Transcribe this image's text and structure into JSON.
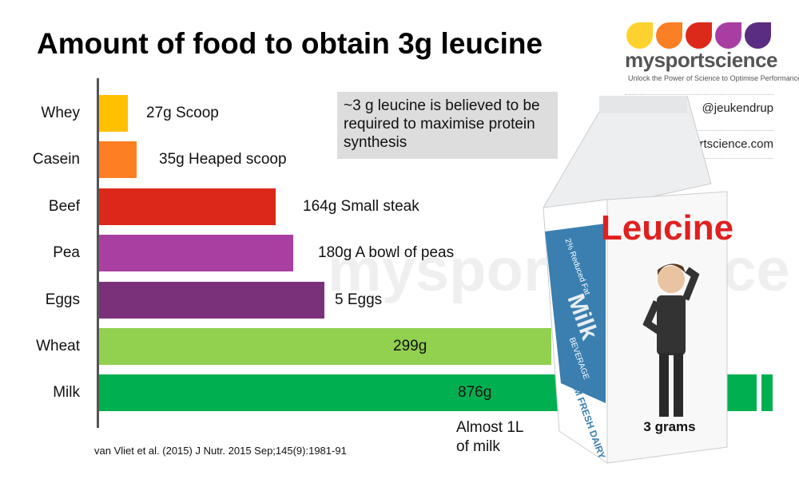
{
  "title": "Amount of food to obtain 3g leucine",
  "logo": {
    "brand": "mysportscience",
    "tagline": "Unlock the Power of Science to Optimise Performance",
    "drop_colors": [
      "#fdd22e",
      "#fb7f24",
      "#dc2a1a",
      "#a83ea2",
      "#5a2d82"
    ],
    "twitter": "@jeukendrup",
    "website": "mysportscience.com"
  },
  "watermark": "mysportscience",
  "note": "~3 g leucine is believed to be required to maximise protein synthesis",
  "citation": "van Vliet et al. (2015) J Nutr. 2015 Sep;145(9):1981-91",
  "milk_annotation": "Almost 1L of milk",
  "carton": {
    "brand_text": "Leucine",
    "amount_text": "3 grams",
    "side_top": "2% Reduced Fat",
    "side_main": "Milk",
    "side_sub": "BEVERAGE",
    "side_bottom": "FARM FRESH DAIRY"
  },
  "chart_data": {
    "type": "bar",
    "orientation": "horizontal",
    "title": "Amount of food to obtain 3g leucine",
    "unit": "g",
    "categories": [
      "Whey",
      "Casein",
      "Beef",
      "Pea",
      "Eggs",
      "Wheat",
      "Milk"
    ],
    "values": [
      27,
      35,
      164,
      180,
      null,
      299,
      876
    ],
    "data_labels": [
      "27g  Scoop",
      "35g  Heaped scoop",
      "164g  Small steak",
      "180g  A bowl of peas",
      "5 Eggs",
      "299g",
      "876g"
    ],
    "colors": [
      "#ffc000",
      "#fd7f23",
      "#dc281a",
      "#a940a1",
      "#7b3179",
      "#92d050",
      "#00b050"
    ],
    "axis_break": "Milk",
    "grid": false
  }
}
